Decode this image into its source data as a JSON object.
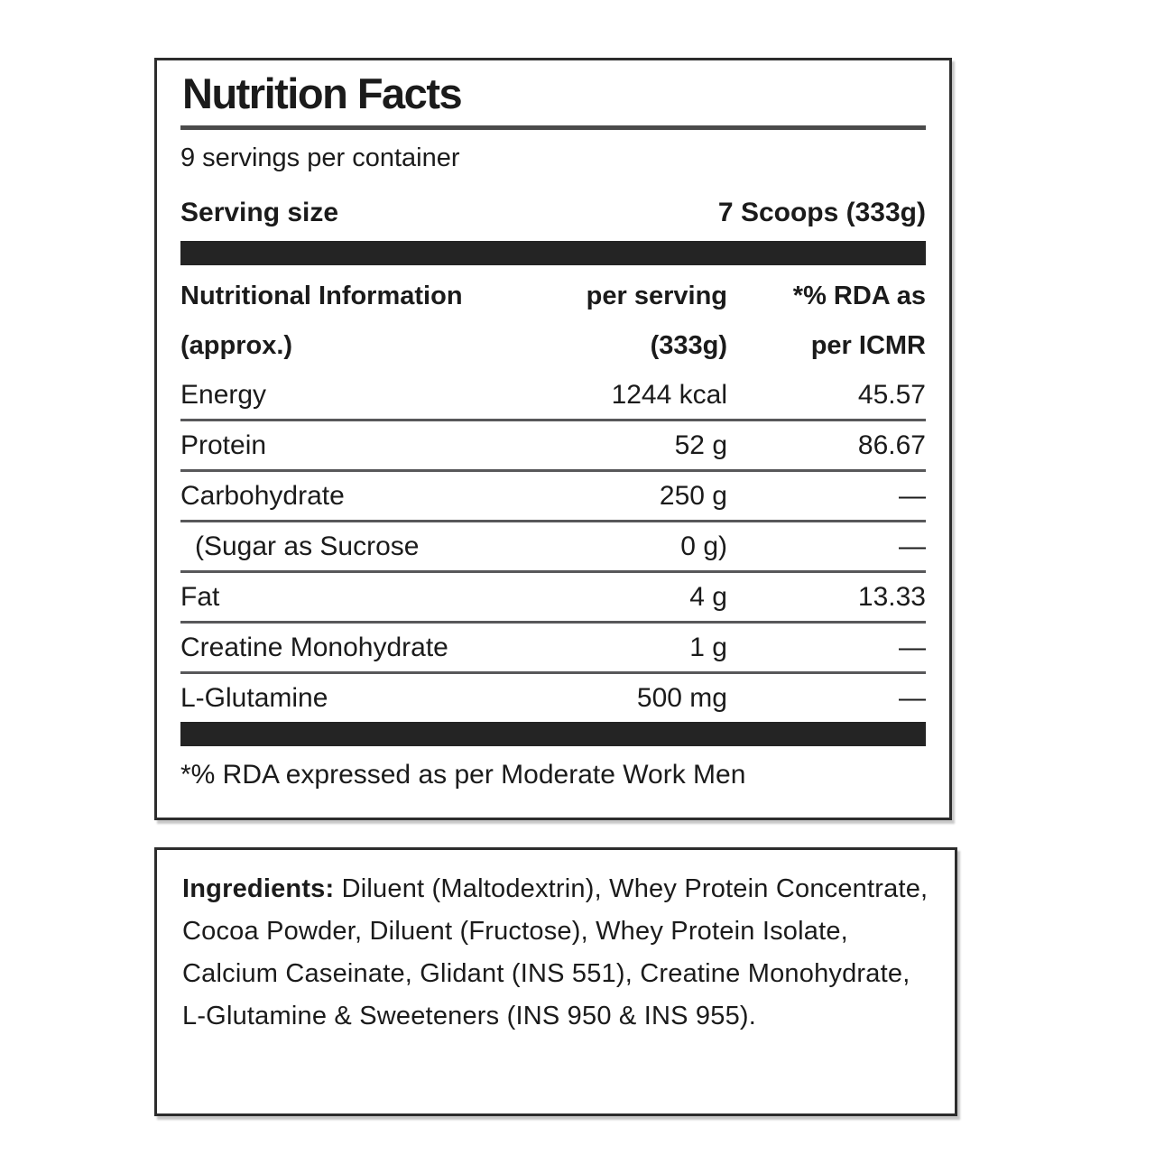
{
  "label": {
    "title": "Nutrition Facts",
    "servings_per_container": "9 servings per container",
    "serving_size_label": "Serving size",
    "serving_size_value": "7 Scoops (333g)",
    "header": {
      "col1_line1": "Nutritional Information",
      "col1_line2": "(approx.)",
      "col2_line1": "per serving",
      "col2_line2": "(333g)",
      "col3_line1": "*% RDA as",
      "col3_line2": "per ICMR"
    },
    "rows": [
      {
        "name": "Energy",
        "per_serving": "1244 kcal",
        "rda": "45.57"
      },
      {
        "name": "Protein",
        "per_serving": "52 g",
        "rda": "86.67"
      },
      {
        "name": "Carbohydrate",
        "per_serving": "250 g",
        "rda": "—"
      },
      {
        "name": "(Sugar as Sucrose",
        "per_serving": "0 g)",
        "rda": "—"
      },
      {
        "name": "Fat",
        "per_serving": "4 g",
        "rda": "13.33"
      },
      {
        "name": "Creatine Monohydrate",
        "per_serving": "1 g",
        "rda": "—"
      },
      {
        "name": "L-Glutamine",
        "per_serving": "500 mg",
        "rda": "—"
      }
    ],
    "footnote": "*% RDA expressed as per Moderate Work Men"
  },
  "ingredients": {
    "label": "Ingredients:",
    "text": " Diluent (Maltodextrin), Whey Protein Concentrate, Cocoa Powder, Diluent (Fructose), Whey Protein Isolate, Calcium Caseinate, Glidant (INS 551), Creatine Monohydrate, L-Glutamine & Sweeteners (INS 950 & INS 955)."
  },
  "colors": {
    "text": "#1b1b1b",
    "bar": "#242424",
    "rule": "#4b4b4b",
    "sep": "#58585a",
    "border": "#2d2d2d"
  }
}
